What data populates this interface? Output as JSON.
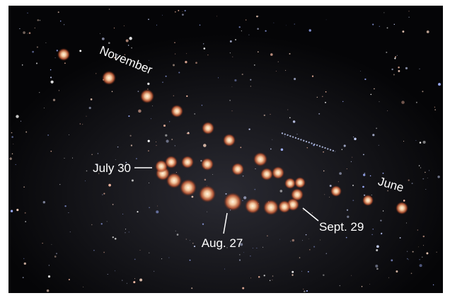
{
  "labels": {
    "november": "November",
    "july": "July 30",
    "august": "Aug. 27",
    "september": "Sept. 29",
    "june": "June"
  }
}
